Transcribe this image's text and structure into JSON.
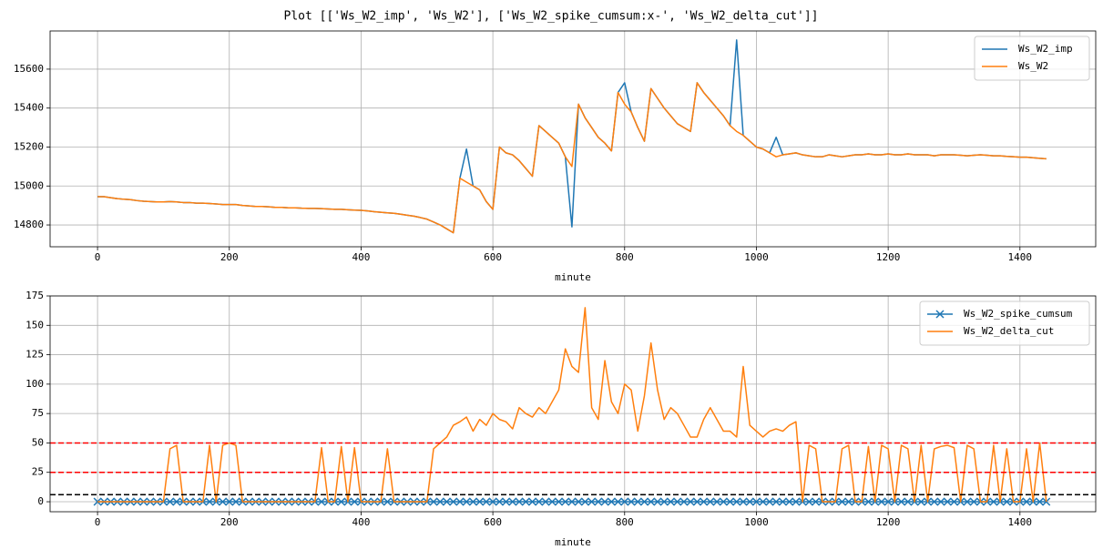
{
  "title": "Plot [['Ws_W2_imp', 'Ws_W2'], ['Ws_W2_spike_cumsum:x-', 'Ws_W2_delta_cut']]",
  "chart_data": [
    {
      "type": "line",
      "xlabel": "minute",
      "grid": true,
      "legend": "upper right",
      "xlim": [
        -72,
        1515
      ],
      "xticks": [
        0,
        200,
        400,
        600,
        800,
        1000,
        1200,
        1400
      ],
      "ylim": [
        14688,
        15796
      ],
      "yticks": [
        14800,
        15000,
        15200,
        15400,
        15600
      ],
      "x": [
        0,
        10,
        20,
        30,
        40,
        50,
        60,
        70,
        80,
        90,
        100,
        110,
        120,
        130,
        140,
        150,
        160,
        170,
        180,
        190,
        200,
        210,
        220,
        230,
        240,
        250,
        260,
        270,
        280,
        290,
        300,
        310,
        320,
        330,
        340,
        350,
        360,
        370,
        380,
        390,
        400,
        410,
        420,
        430,
        440,
        450,
        460,
        470,
        480,
        490,
        500,
        510,
        520,
        530,
        540,
        550,
        560,
        570,
        580,
        590,
        600,
        610,
        620,
        630,
        640,
        650,
        660,
        670,
        680,
        690,
        700,
        710,
        720,
        730,
        740,
        750,
        760,
        770,
        780,
        790,
        800,
        810,
        820,
        830,
        840,
        850,
        860,
        870,
        880,
        890,
        900,
        910,
        920,
        930,
        940,
        950,
        960,
        970,
        980,
        990,
        1000,
        1010,
        1020,
        1030,
        1040,
        1050,
        1060,
        1070,
        1080,
        1090,
        1100,
        1110,
        1120,
        1130,
        1140,
        1150,
        1160,
        1170,
        1180,
        1190,
        1200,
        1210,
        1220,
        1230,
        1240,
        1250,
        1260,
        1270,
        1280,
        1290,
        1300,
        1310,
        1320,
        1330,
        1340,
        1350,
        1360,
        1370,
        1380,
        1390,
        1400,
        1410,
        1420,
        1430,
        1440
      ],
      "series": [
        {
          "name": "Ws_W2_imp",
          "color": "#1f77b4",
          "values": [
            14945,
            14945,
            14940,
            14935,
            14932,
            14930,
            14925,
            14922,
            14920,
            14918,
            14918,
            14920,
            14918,
            14915,
            14915,
            14912,
            14912,
            14910,
            14908,
            14905,
            14905,
            14905,
            14900,
            14898,
            14895,
            14895,
            14893,
            14890,
            14890,
            14888,
            14888,
            14886,
            14885,
            14885,
            14884,
            14882,
            14880,
            14880,
            14878,
            14876,
            14875,
            14872,
            14868,
            14865,
            14862,
            14860,
            14855,
            14850,
            14845,
            14838,
            14830,
            14815,
            14800,
            14780,
            14760,
            15040,
            15190,
            15000,
            14980,
            14920,
            14880,
            15200,
            15170,
            15160,
            15130,
            15090,
            15050,
            15310,
            15280,
            15250,
            15220,
            15150,
            14790,
            15420,
            15350,
            15300,
            15250,
            15220,
            15180,
            15480,
            15530,
            15380,
            15300,
            15230,
            15500,
            15450,
            15400,
            15360,
            15320,
            15300,
            15280,
            15530,
            15480,
            15440,
            15400,
            15360,
            15310,
            15750,
            15260,
            15230,
            15200,
            15190,
            15170,
            15250,
            15160,
            15165,
            15170,
            15160,
            15155,
            15150,
            15150,
            15160,
            15155,
            15150,
            15155,
            15160,
            15160,
            15165,
            15160,
            15160,
            15165,
            15160,
            15160,
            15165,
            15160,
            15160,
            15160,
            15155,
            15160,
            15160,
            15160,
            15158,
            15155,
            15158,
            15160,
            15158,
            15155,
            15155,
            15152,
            15150,
            15148,
            15148,
            15145,
            15142,
            15140
          ]
        },
        {
          "name": "Ws_W2",
          "color": "#ff7f0e",
          "values": [
            14945,
            14945,
            14940,
            14935,
            14932,
            14930,
            14925,
            14922,
            14920,
            14918,
            14918,
            14920,
            14918,
            14915,
            14915,
            14912,
            14912,
            14910,
            14908,
            14905,
            14905,
            14905,
            14900,
            14898,
            14895,
            14895,
            14893,
            14890,
            14890,
            14888,
            14888,
            14886,
            14885,
            14885,
            14884,
            14882,
            14880,
            14880,
            14878,
            14876,
            14875,
            14872,
            14868,
            14865,
            14862,
            14860,
            14855,
            14850,
            14845,
            14838,
            14830,
            14815,
            14800,
            14780,
            14760,
            15040,
            15020,
            15000,
            14980,
            14920,
            14880,
            15200,
            15170,
            15160,
            15130,
            15090,
            15050,
            15310,
            15280,
            15250,
            15220,
            15150,
            15100,
            15420,
            15350,
            15300,
            15250,
            15220,
            15180,
            15480,
            15420,
            15380,
            15300,
            15230,
            15500,
            15450,
            15400,
            15360,
            15320,
            15300,
            15280,
            15530,
            15480,
            15440,
            15400,
            15360,
            15310,
            15280,
            15260,
            15230,
            15200,
            15190,
            15170,
            15150,
            15160,
            15165,
            15170,
            15160,
            15155,
            15150,
            15150,
            15160,
            15155,
            15150,
            15155,
            15160,
            15160,
            15165,
            15160,
            15160,
            15165,
            15160,
            15160,
            15165,
            15160,
            15160,
            15160,
            15155,
            15160,
            15160,
            15160,
            15158,
            15155,
            15158,
            15160,
            15158,
            15155,
            15155,
            15152,
            15150,
            15148,
            15148,
            15145,
            15142,
            15140
          ]
        }
      ]
    },
    {
      "type": "line",
      "xlabel": "minute",
      "grid": true,
      "legend": "upper right",
      "xlim": [
        -72,
        1515
      ],
      "xticks": [
        0,
        200,
        400,
        600,
        800,
        1000,
        1200,
        1400
      ],
      "ylim": [
        -8.5,
        175
      ],
      "yticks": [
        0,
        25,
        50,
        75,
        100,
        125,
        150,
        175
      ],
      "hlines": [
        {
          "value": 50,
          "color": "#ff0000"
        },
        {
          "value": 25,
          "color": "#ff0000"
        },
        {
          "value": 6,
          "color": "#000000"
        }
      ],
      "x": [
        0,
        10,
        20,
        30,
        40,
        50,
        60,
        70,
        80,
        90,
        100,
        110,
        120,
        130,
        140,
        150,
        160,
        170,
        180,
        190,
        200,
        210,
        220,
        230,
        240,
        250,
        260,
        270,
        280,
        290,
        300,
        310,
        320,
        330,
        340,
        350,
        360,
        370,
        380,
        390,
        400,
        410,
        420,
        430,
        440,
        450,
        460,
        470,
        480,
        490,
        500,
        510,
        520,
        530,
        540,
        550,
        560,
        570,
        580,
        590,
        600,
        610,
        620,
        630,
        640,
        650,
        660,
        670,
        680,
        690,
        700,
        710,
        720,
        730,
        740,
        750,
        760,
        770,
        780,
        790,
        800,
        810,
        820,
        830,
        840,
        850,
        860,
        870,
        880,
        890,
        900,
        910,
        920,
        930,
        940,
        950,
        960,
        970,
        980,
        990,
        1000,
        1010,
        1020,
        1030,
        1040,
        1050,
        1060,
        1070,
        1080,
        1090,
        1100,
        1110,
        1120,
        1130,
        1140,
        1150,
        1160,
        1170,
        1180,
        1190,
        1200,
        1210,
        1220,
        1230,
        1240,
        1250,
        1260,
        1270,
        1280,
        1290,
        1300,
        1310,
        1320,
        1330,
        1340,
        1350,
        1360,
        1370,
        1380,
        1390,
        1400,
        1410,
        1420,
        1430,
        1440
      ],
      "series": [
        {
          "name": "Ws_W2_spike_cumsum",
          "color": "#1f77b4",
          "marker": "x",
          "values": [
            0,
            0,
            0,
            0,
            0,
            0,
            0,
            0,
            0,
            0,
            0,
            0,
            0,
            0,
            0,
            0,
            0,
            0,
            0,
            0,
            0,
            0,
            0,
            0,
            0,
            0,
            0,
            0,
            0,
            0,
            0,
            0,
            0,
            0,
            0,
            0,
            0,
            0,
            0,
            0,
            0,
            0,
            0,
            0,
            0,
            0,
            0,
            0,
            0,
            0,
            0,
            0,
            0,
            0,
            0,
            0,
            0,
            0,
            0,
            0,
            0,
            0,
            0,
            0,
            0,
            0,
            0,
            0,
            0,
            0,
            0,
            0,
            0,
            0,
            0,
            0,
            0,
            0,
            0,
            0,
            0,
            0,
            0,
            0,
            0,
            0,
            0,
            0,
            0,
            0,
            0,
            0,
            0,
            0,
            0,
            0,
            0,
            0,
            0,
            0,
            0,
            0,
            0,
            0,
            0,
            0,
            0,
            0,
            0,
            0,
            0,
            0,
            0,
            0,
            0,
            0,
            0,
            0,
            0,
            0,
            0,
            0,
            0,
            0,
            0,
            0,
            0,
            0,
            0,
            0,
            0,
            0,
            0,
            0,
            0,
            0,
            0,
            0,
            0,
            0,
            0,
            0,
            0,
            0,
            0
          ]
        },
        {
          "name": "Ws_W2_delta_cut",
          "color": "#ff7f0e",
          "values": [
            0,
            0,
            0,
            0,
            0,
            0,
            0,
            0,
            0,
            0,
            0,
            45,
            48,
            0,
            0,
            0,
            0,
            48,
            0,
            48,
            50,
            48,
            0,
            0,
            0,
            0,
            0,
            0,
            0,
            0,
            0,
            0,
            0,
            0,
            46,
            0,
            0,
            47,
            0,
            46,
            0,
            0,
            0,
            0,
            45,
            0,
            0,
            0,
            0,
            0,
            0,
            45,
            50,
            55,
            65,
            68,
            72,
            60,
            70,
            65,
            75,
            70,
            68,
            62,
            80,
            75,
            72,
            80,
            75,
            85,
            95,
            130,
            115,
            110,
            165,
            80,
            70,
            120,
            85,
            75,
            100,
            95,
            60,
            90,
            135,
            95,
            70,
            80,
            75,
            65,
            55,
            55,
            70,
            80,
            70,
            60,
            60,
            55,
            115,
            65,
            60,
            55,
            60,
            62,
            60,
            65,
            68,
            0,
            48,
            45,
            0,
            0,
            0,
            45,
            48,
            0,
            0,
            47,
            0,
            48,
            45,
            0,
            48,
            45,
            0,
            48,
            0,
            45,
            47,
            48,
            46,
            0,
            48,
            45,
            0,
            0,
            48,
            0,
            45,
            0,
            0,
            45,
            0,
            50,
            0
          ]
        }
      ]
    }
  ]
}
